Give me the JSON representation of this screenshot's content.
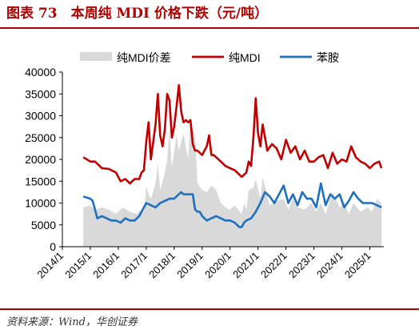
{
  "title": "图表 73　本周纯 MDI 价格下跌（元/吨）",
  "source": "资料来源：Wind，华创证券",
  "colors": {
    "spread": "#d9d9d9",
    "mdi": "#c00000",
    "aniline": "#1f6fbf",
    "accent": "#b30000"
  },
  "chart_data": {
    "type": "line",
    "title": "",
    "xlabel": "",
    "ylabel": "",
    "ylim": [
      0,
      40000
    ],
    "y_ticks": [
      "0",
      "5000",
      "10000",
      "15000",
      "20000",
      "25000",
      "30000",
      "35000",
      "40000"
    ],
    "x_ticks": [
      "2014/1",
      "2015/1",
      "2016/1",
      "2017/1",
      "2018/1",
      "2019/1",
      "2020/1",
      "2021/1",
      "2022/1",
      "2023/1",
      "2024/1",
      "2025/1"
    ],
    "x_range": [
      "2014-01",
      "2025-07"
    ],
    "legend": {
      "position": "top",
      "entries": [
        "纯MDI价差",
        "纯MDI",
        "苯胺"
      ]
    },
    "grid": false,
    "series": [
      {
        "name": "纯MDI价差",
        "kind": "area",
        "x": [
          "2014-10",
          "2015-01",
          "2015-03",
          "2015-06",
          "2015-09",
          "2015-12",
          "2016-03",
          "2016-06",
          "2016-09",
          "2016-11",
          "2016-12",
          "2017-01",
          "2017-02",
          "2017-03",
          "2017-05",
          "2017-06",
          "2017-07",
          "2017-09",
          "2017-10",
          "2017-11",
          "2017-12",
          "2018-02",
          "2018-03",
          "2018-05",
          "2018-07",
          "2018-08",
          "2018-09",
          "2018-10",
          "2018-11",
          "2019-01",
          "2019-03",
          "2019-05",
          "2019-07",
          "2019-09",
          "2019-11",
          "2020-01",
          "2020-03",
          "2020-05",
          "2020-06",
          "2020-07",
          "2020-08",
          "2020-09",
          "2020-11",
          "2020-12",
          "2021-02",
          "2021-03",
          "2021-06",
          "2021-09",
          "2021-12",
          "2022-02",
          "2022-04",
          "2022-06",
          "2022-09",
          "2022-12",
          "2023-02",
          "2023-04",
          "2023-06",
          "2023-09",
          "2023-12",
          "2024-02",
          "2024-04",
          "2024-06",
          "2024-09",
          "2024-12",
          "2025-02",
          "2025-04",
          "2025-06"
        ],
        "values": [
          9000,
          9500,
          8500,
          9000,
          8500,
          7500,
          9000,
          8000,
          7500,
          8500,
          8000,
          14000,
          12000,
          11000,
          14500,
          19000,
          13000,
          17000,
          20000,
          27000,
          18000,
          25500,
          22000,
          26000,
          20000,
          30000,
          27000,
          25000,
          14500,
          13000,
          12500,
          14000,
          13000,
          10000,
          9000,
          8500,
          9500,
          8000,
          7500,
          10000,
          8500,
          13000,
          13500,
          15500,
          11000,
          16000,
          9500,
          10500,
          11000,
          8500,
          11000,
          9000,
          8500,
          10000,
          8000,
          10000,
          7500,
          12500,
          9000,
          10000,
          7500,
          10000,
          8000,
          9000,
          8000,
          11000,
          10000
        ]
      },
      {
        "name": "纯MDI",
        "kind": "line",
        "x": [
          "2014-10",
          "2015-01",
          "2015-03",
          "2015-06",
          "2015-09",
          "2015-12",
          "2016-02",
          "2016-04",
          "2016-06",
          "2016-08",
          "2016-10",
          "2016-11",
          "2016-12",
          "2017-01",
          "2017-02",
          "2017-03",
          "2017-05",
          "2017-06",
          "2017-07",
          "2017-08",
          "2017-09",
          "2017-10",
          "2017-11",
          "2017-12",
          "2018-01",
          "2018-02",
          "2018-03",
          "2018-04",
          "2018-05",
          "2018-06",
          "2018-07",
          "2018-08",
          "2018-09",
          "2018-10",
          "2018-11",
          "2018-12",
          "2019-01",
          "2019-02",
          "2019-03",
          "2019-04",
          "2019-05",
          "2019-06",
          "2019-07",
          "2019-09",
          "2019-11",
          "2020-01",
          "2020-03",
          "2020-05",
          "2020-06",
          "2020-08",
          "2020-09",
          "2020-10",
          "2020-11",
          "2020-12",
          "2021-01",
          "2021-02",
          "2021-03",
          "2021-05",
          "2021-07",
          "2021-09",
          "2021-11",
          "2022-01",
          "2022-03",
          "2022-05",
          "2022-07",
          "2022-09",
          "2022-11",
          "2023-01",
          "2023-03",
          "2023-05",
          "2023-07",
          "2023-09",
          "2023-11",
          "2024-01",
          "2024-03",
          "2024-05",
          "2024-07",
          "2024-09",
          "2024-11",
          "2025-01",
          "2025-03",
          "2025-05",
          "2025-06"
        ],
        "values": [
          20500,
          19500,
          19500,
          18000,
          17800,
          17000,
          15000,
          15500,
          14500,
          15500,
          15500,
          17000,
          17500,
          24000,
          28500,
          20000,
          28000,
          35000,
          25500,
          23000,
          27000,
          35000,
          33500,
          25000,
          27500,
          32000,
          37000,
          31000,
          28500,
          29000,
          28500,
          29000,
          23500,
          22000,
          22000,
          21500,
          21000,
          22000,
          23000,
          25500,
          21000,
          21000,
          20500,
          19500,
          18500,
          18000,
          17500,
          16500,
          16000,
          17000,
          19500,
          18500,
          25000,
          34000,
          26000,
          23000,
          28000,
          22000,
          23500,
          22500,
          20000,
          24500,
          21500,
          23000,
          20000,
          22000,
          19500,
          19500,
          20500,
          21000,
          18000,
          21500,
          19000,
          20000,
          19500,
          23000,
          20500,
          19500,
          19000,
          18000,
          19000,
          19500,
          18000
        ]
      },
      {
        "name": "苯胺",
        "kind": "line",
        "x": [
          "2014-10",
          "2015-01",
          "2015-02",
          "2015-04",
          "2015-06",
          "2015-08",
          "2015-10",
          "2015-12",
          "2016-02",
          "2016-04",
          "2016-06",
          "2016-08",
          "2016-10",
          "2016-11",
          "2016-12",
          "2017-01",
          "2017-03",
          "2017-05",
          "2017-07",
          "2017-09",
          "2017-11",
          "2018-01",
          "2018-03",
          "2018-04",
          "2018-05",
          "2018-07",
          "2018-09",
          "2018-10",
          "2018-11",
          "2018-12",
          "2019-01",
          "2019-03",
          "2019-05",
          "2019-07",
          "2019-09",
          "2019-11",
          "2020-01",
          "2020-03",
          "2020-04",
          "2020-05",
          "2020-06",
          "2020-07",
          "2020-08",
          "2020-10",
          "2020-12",
          "2021-02",
          "2021-04",
          "2021-06",
          "2021-08",
          "2021-10",
          "2021-12",
          "2022-02",
          "2022-04",
          "2022-06",
          "2022-08",
          "2022-10",
          "2022-12",
          "2023-02",
          "2023-04",
          "2023-06",
          "2023-08",
          "2023-10",
          "2023-12",
          "2024-02",
          "2024-04",
          "2024-06",
          "2024-08",
          "2024-10",
          "2024-12",
          "2025-02",
          "2025-04",
          "2025-06"
        ],
        "values": [
          11500,
          11000,
          10500,
          6500,
          7000,
          6500,
          6000,
          6000,
          5500,
          6500,
          6000,
          6000,
          7000,
          8000,
          9000,
          10000,
          9500,
          9000,
          10000,
          10500,
          11000,
          11000,
          12000,
          12500,
          12000,
          12000,
          12000,
          8500,
          8000,
          8000,
          7000,
          6000,
          6500,
          7000,
          6500,
          6000,
          6000,
          5500,
          5000,
          4500,
          4500,
          5500,
          6000,
          6500,
          8000,
          10000,
          12500,
          11500,
          10000,
          12000,
          14000,
          10000,
          12000,
          9500,
          12500,
          11000,
          11000,
          9000,
          14500,
          9500,
          12000,
          11000,
          12000,
          9000,
          10500,
          12500,
          11000,
          10000,
          10000,
          10000,
          9500,
          9000
        ]
      }
    ]
  }
}
